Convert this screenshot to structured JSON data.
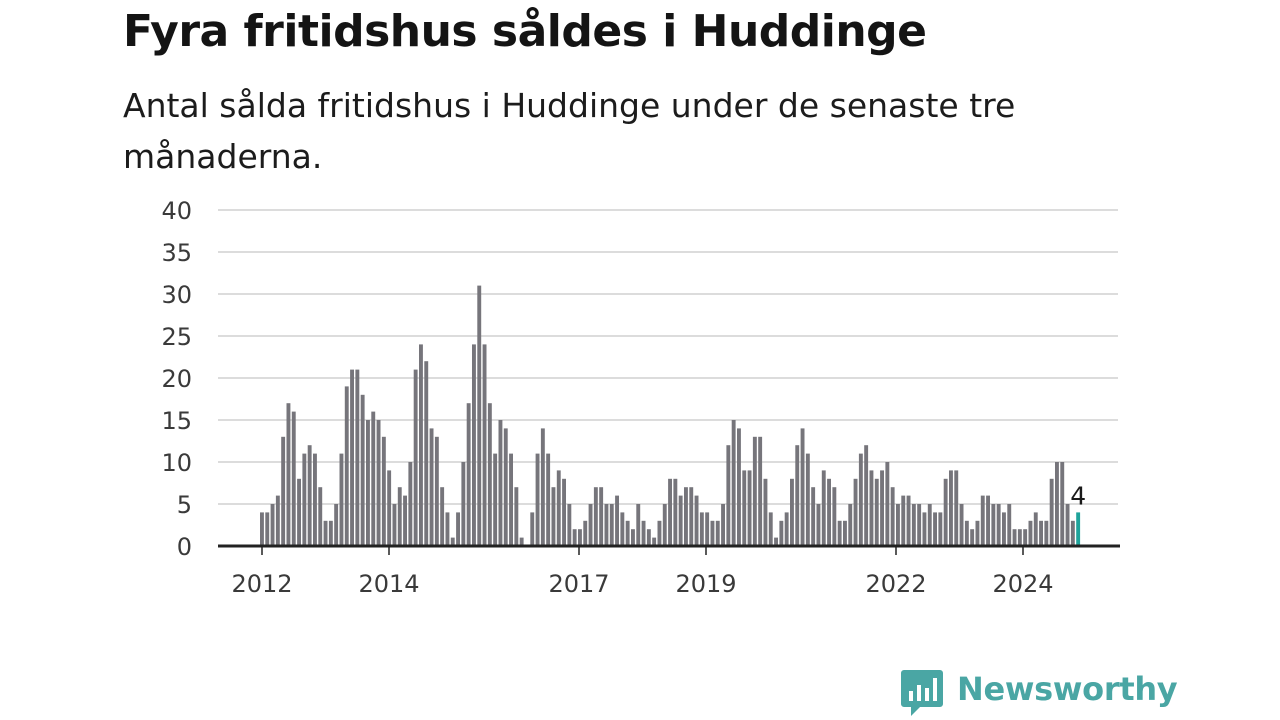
{
  "brand": {
    "name": "Newsworthy",
    "color": "#4aa6a4"
  },
  "colors": {
    "bar": "#76757b",
    "highlight": "#1fa39b",
    "grid": "#dcdcdc",
    "axis": "#222222"
  },
  "chart_data": {
    "type": "bar",
    "title": "Fyra fritidshus såldes i Huddinge",
    "subtitle": "Antal sålda fritidshus i Huddinge under de senaste tre månaderna.",
    "xlabel": "",
    "ylabel": "",
    "ylim": [
      0,
      40
    ],
    "y_ticks": [
      "0",
      "5",
      "10",
      "15",
      "20",
      "25",
      "30",
      "35",
      "40"
    ],
    "x_tick_labels": [
      "2012",
      "2014",
      "2017",
      "2019",
      "2022",
      "2024"
    ],
    "grid": true,
    "legend": "none",
    "annotation": "4",
    "highlight": "last bar",
    "values": [
      4,
      4,
      5,
      6,
      13,
      17,
      16,
      8,
      11,
      12,
      11,
      7,
      3,
      3,
      5,
      11,
      19,
      21,
      21,
      18,
      15,
      16,
      15,
      13,
      9,
      5,
      7,
      6,
      10,
      21,
      24,
      22,
      14,
      13,
      7,
      4,
      1,
      4,
      10,
      17,
      24,
      31,
      24,
      17,
      11,
      15,
      14,
      11,
      7,
      1,
      0,
      4,
      11,
      14,
      11,
      7,
      9,
      8,
      5,
      2,
      2,
      3,
      5,
      7,
      7,
      5,
      5,
      6,
      4,
      3,
      2,
      5,
      3,
      2,
      1,
      3,
      5,
      8,
      8,
      6,
      7,
      7,
      6,
      4,
      4,
      3,
      3,
      5,
      12,
      15,
      14,
      9,
      9,
      13,
      13,
      8,
      4,
      1,
      3,
      4,
      8,
      12,
      14,
      11,
      7,
      5,
      9,
      8,
      7,
      3,
      3,
      5,
      8,
      11,
      12,
      9,
      8,
      9,
      10,
      7,
      5,
      6,
      6,
      5,
      5,
      4,
      5,
      4,
      4,
      8,
      9,
      9,
      5,
      3,
      2,
      3,
      6,
      6,
      5,
      5,
      4,
      5,
      2,
      2,
      2,
      3,
      4,
      3,
      3,
      8,
      10,
      10,
      5,
      3,
      4
    ]
  }
}
